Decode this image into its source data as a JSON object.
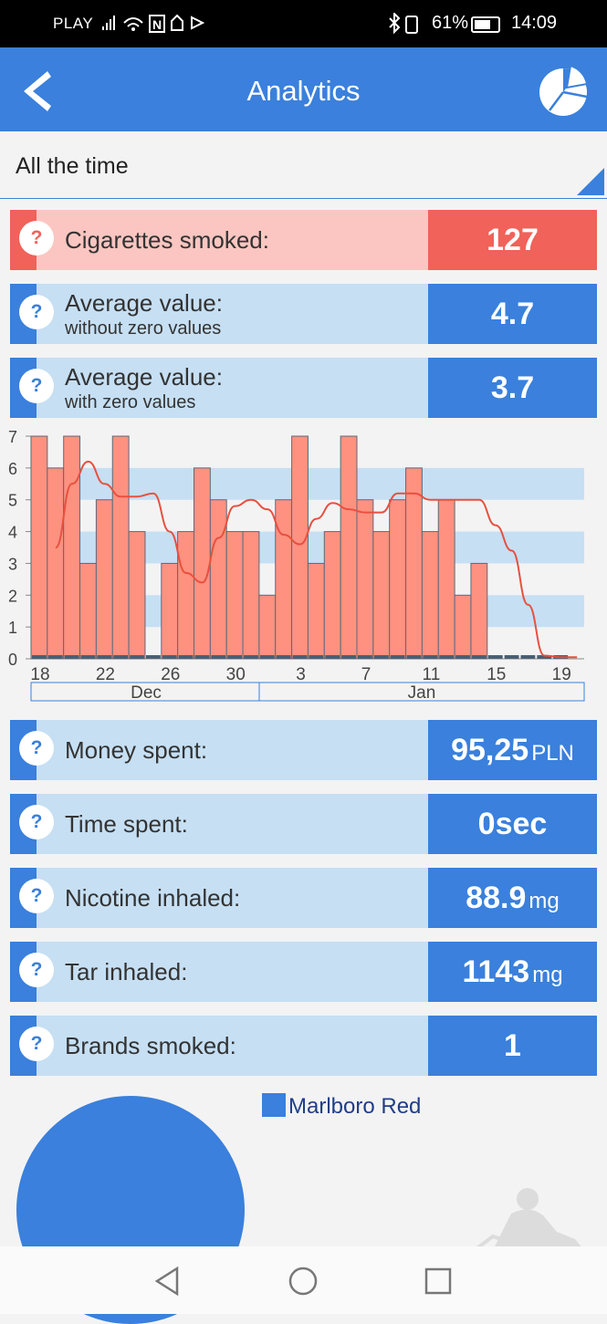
{
  "status_bar": {
    "carrier": "PLAY",
    "battery": "61%",
    "time": "14:09"
  },
  "header": {
    "title": "Analytics",
    "back_icon": "back-arrow-icon",
    "chart_icon": "pie-chart-icon"
  },
  "period": {
    "selected": "All the time"
  },
  "stats": {
    "cigarettes": {
      "label": "Cigarettes smoked:",
      "value": "127"
    },
    "avg_nonzero": {
      "label": "Average value:",
      "sub": "without zero values",
      "value": "4.7"
    },
    "avg_zero": {
      "label": "Average value:",
      "sub": "with zero values",
      "value": "3.7"
    },
    "money": {
      "label": "Money spent:",
      "value": "95,25",
      "unit": "PLN"
    },
    "time": {
      "label": "Time spent:",
      "value": "0sec"
    },
    "nicotine": {
      "label": "Nicotine inhaled:",
      "value": "88.9",
      "unit": "mg"
    },
    "tar": {
      "label": "Tar inhaled:",
      "value": "1143",
      "unit": "mg"
    },
    "brands": {
      "label": "Brands smoked:",
      "value": "1"
    }
  },
  "help_symbol": "?",
  "colors": {
    "accent": "#3a80dc",
    "alert": "#f0625a",
    "bar": "#fe9180",
    "trend": "#e8503f"
  },
  "chart_data": {
    "type": "bar",
    "x_start": 18,
    "values": [
      7,
      6,
      7,
      3,
      5,
      7,
      4,
      0,
      3,
      4,
      6,
      5,
      4,
      4,
      2,
      5,
      7,
      3,
      4,
      7,
      5,
      4,
      5,
      6,
      4,
      5,
      2,
      3,
      0,
      0,
      0,
      0,
      0
    ],
    "trend": [
      3.5,
      5.5,
      6.2,
      5.5,
      5.1,
      5.1,
      5.2,
      4.0,
      2.7,
      2.4,
      3.8,
      4.8,
      5.0,
      4.7,
      3.9,
      3.6,
      4.4,
      4.9,
      4.7,
      4.6,
      4.6,
      5.2,
      5.2,
      5.0,
      5.0,
      5.0,
      5.0,
      4.2,
      3.4,
      1.7,
      0.1,
      0.05,
      0.05
    ],
    "x_ticks": [
      "18",
      "22",
      "26",
      "30",
      "3",
      "7",
      "11",
      "15",
      "19"
    ],
    "y_ticks": [
      "0",
      "1",
      "2",
      "3",
      "4",
      "5",
      "6",
      "7"
    ],
    "ylim": [
      0,
      7
    ],
    "months": [
      "Dec",
      "Jan"
    ],
    "grid": "alternating horizontal bands"
  },
  "brands_chart": {
    "legend": [
      "Marlboro Red"
    ]
  }
}
